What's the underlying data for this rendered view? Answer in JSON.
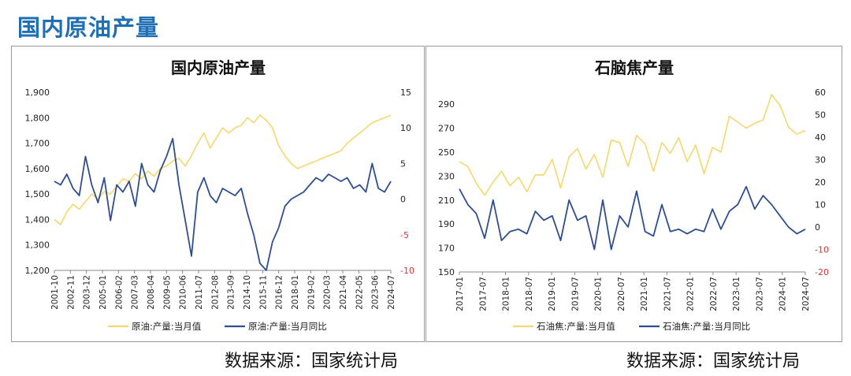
{
  "page_title": "国内原油产量",
  "source_left": "数据来源：国家统计局",
  "source_right": "数据来源：国家统计局",
  "colors": {
    "value_line": "#f5d76e",
    "yoy_line": "#2f4e8f",
    "right_axis_negative": "#e03030",
    "title_blue": "#1f6fb5"
  },
  "chart_data": [
    {
      "type": "line",
      "title": "国内原油产量",
      "x_tick_labels": [
        "2001-10",
        "2002-11",
        "2003-12",
        "2005-01",
        "2006-02",
        "2007-03",
        "2008-04",
        "2009-05",
        "2010-06",
        "2011-07",
        "2012-08",
        "2013-09",
        "2014-10",
        "2015-11",
        "2016-12",
        "2018-01",
        "2019-02",
        "2020-03",
        "2021-04",
        "2022-05",
        "2023-06",
        "2024-07"
      ],
      "ylim_left": [
        1200,
        1900
      ],
      "yticks_left": [
        "1,200",
        "1,300",
        "1,400",
        "1,500",
        "1,600",
        "1,700",
        "1,800",
        "1,900"
      ],
      "ylim_right": [
        -10,
        15
      ],
      "yticks_right": [
        "-10",
        "-5",
        "0",
        "5",
        "10",
        "15"
      ],
      "legend": [
        "原油:产量:当月值",
        "原油:产量:当月同比"
      ],
      "series": [
        {
          "name": "原油:产量:当月值",
          "axis": "left",
          "values": [
            1400,
            1380,
            1430,
            1460,
            1440,
            1470,
            1500,
            1480,
            1510,
            1500,
            1530,
            1560,
            1550,
            1580,
            1560,
            1590,
            1570,
            1600,
            1610,
            1630,
            1640,
            1610,
            1650,
            1700,
            1740,
            1680,
            1720,
            1760,
            1740,
            1760,
            1770,
            1800,
            1780,
            1810,
            1790,
            1760,
            1690,
            1650,
            1620,
            1600,
            1610,
            1620,
            1630,
            1640,
            1650,
            1660,
            1670,
            1700,
            1720,
            1740,
            1760,
            1780,
            1790,
            1800,
            1810
          ]
        },
        {
          "name": "原油:产量:当月同比",
          "axis": "right",
          "values": [
            2.5,
            2,
            3.5,
            1.5,
            0.5,
            6,
            2,
            -0.5,
            3,
            -3,
            2,
            1,
            2.5,
            -1,
            5,
            2,
            1,
            4,
            6,
            8.5,
            2,
            -3,
            -8,
            1,
            3,
            0.5,
            -0.5,
            1.5,
            1,
            0.5,
            1.5,
            -2,
            -5,
            -9,
            -10,
            -6,
            -4,
            -1,
            0,
            0.5,
            1,
            2,
            3,
            2.5,
            3.5,
            3,
            2.5,
            3,
            1.5,
            2,
            1,
            5,
            1.5,
            1,
            2.5
          ]
        }
      ]
    },
    {
      "type": "line",
      "title": "石脑焦产量",
      "x_tick_labels": [
        "2017-01",
        "2017-07",
        "2018-01",
        "2018-07",
        "2019-01",
        "2019-07",
        "2020-01",
        "2020-07",
        "2021-01",
        "2021-07",
        "2022-01",
        "2022-07",
        "2023-01",
        "2023-07",
        "2024-01",
        "2024-07"
      ],
      "ylim_left": [
        150,
        300
      ],
      "yticks_left": [
        "150",
        "170",
        "190",
        "210",
        "230",
        "250",
        "270",
        "290"
      ],
      "ylim_right": [
        -20,
        60
      ],
      "yticks_right": [
        "-20",
        "-10",
        "0",
        "10",
        "20",
        "30",
        "40",
        "50",
        "60"
      ],
      "legend": [
        "石油焦:产量:当月值",
        "石油焦:产量:当月同比"
      ],
      "series": [
        {
          "name": "石油焦:产量:当月值",
          "axis": "left",
          "values": [
            242,
            238,
            224,
            214,
            225,
            234,
            222,
            229,
            217,
            231,
            231,
            244,
            220,
            246,
            253,
            236,
            248,
            229,
            260,
            258,
            238,
            264,
            257,
            234,
            258,
            249,
            262,
            242,
            256,
            232,
            254,
            250,
            280,
            275,
            270,
            274,
            277,
            298,
            289,
            271,
            265,
            268
          ]
        },
        {
          "name": "石油焦:产量:当月同比",
          "axis": "right",
          "values": [
            17,
            10,
            6,
            -5,
            12,
            -6,
            -2,
            -1,
            -3,
            7,
            3,
            5,
            -6,
            12,
            3,
            5,
            -10,
            12,
            -10,
            5,
            0,
            16,
            -2,
            -4,
            10,
            -2,
            -1,
            -3,
            -1,
            -2,
            8,
            -1,
            7,
            10,
            18,
            8,
            14,
            10,
            5,
            0,
            -3,
            -1
          ]
        }
      ]
    }
  ]
}
